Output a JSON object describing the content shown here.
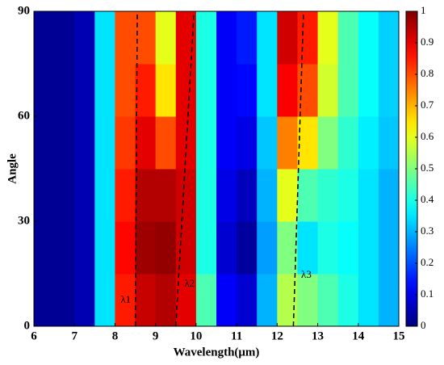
{
  "chart_data": {
    "type": "heatmap",
    "xlabel": "Wavelength(μm)",
    "ylabel": "Angle",
    "xlim": [
      6,
      15
    ],
    "ylim": [
      0,
      90
    ],
    "xticks": [
      6,
      7,
      8,
      9,
      10,
      11,
      12,
      13,
      14,
      15
    ],
    "yticks": [
      0,
      30,
      60,
      90
    ],
    "colormap": "jet",
    "zlim": [
      0,
      1
    ],
    "zticks": [
      0,
      0.1,
      0.2,
      0.3,
      0.4,
      0.5,
      0.6,
      0.7,
      0.8,
      0.9,
      1
    ],
    "x": [
      6.25,
      6.75,
      7.25,
      7.75,
      8.25,
      8.75,
      9.25,
      9.75,
      10.25,
      10.75,
      11.25,
      11.75,
      12.25,
      12.75,
      13.25,
      13.75,
      14.25,
      14.75
    ],
    "y": [
      7.5,
      22.5,
      37.5,
      52.5,
      67.5,
      82.5
    ],
    "z": [
      [
        0.02,
        0.02,
        0.05,
        0.35,
        0.85,
        0.93,
        0.95,
        0.9,
        0.45,
        0.12,
        0.08,
        0.3,
        0.55,
        0.5,
        0.45,
        0.4,
        0.35,
        0.3
      ],
      [
        0.02,
        0.02,
        0.05,
        0.35,
        0.87,
        0.97,
        0.98,
        0.92,
        0.4,
        0.08,
        0.03,
        0.28,
        0.5,
        0.35,
        0.4,
        0.38,
        0.35,
        0.3
      ],
      [
        0.02,
        0.02,
        0.05,
        0.35,
        0.85,
        0.95,
        0.95,
        0.92,
        0.4,
        0.1,
        0.06,
        0.3,
        0.6,
        0.45,
        0.42,
        0.4,
        0.35,
        0.3
      ],
      [
        0.02,
        0.02,
        0.05,
        0.35,
        0.82,
        0.9,
        0.8,
        0.9,
        0.4,
        0.12,
        0.1,
        0.32,
        0.75,
        0.65,
        0.5,
        0.42,
        0.36,
        0.32
      ],
      [
        0.02,
        0.02,
        0.05,
        0.35,
        0.8,
        0.85,
        0.65,
        0.9,
        0.4,
        0.12,
        0.13,
        0.35,
        0.88,
        0.8,
        0.58,
        0.45,
        0.38,
        0.33
      ],
      [
        0.02,
        0.02,
        0.05,
        0.35,
        0.8,
        0.8,
        0.6,
        0.9,
        0.4,
        0.12,
        0.15,
        0.35,
        0.92,
        0.85,
        0.6,
        0.45,
        0.38,
        0.33
      ]
    ],
    "lines": [
      {
        "label": "λ1",
        "x": [
          8.5,
          8.55
        ],
        "y": [
          0,
          90
        ]
      },
      {
        "label": "λ2",
        "x": [
          9.5,
          9.95
        ],
        "y": [
          0,
          90
        ]
      },
      {
        "label": "λ3",
        "x": [
          12.4,
          12.65
        ],
        "y": [
          0,
          90
        ]
      }
    ]
  }
}
